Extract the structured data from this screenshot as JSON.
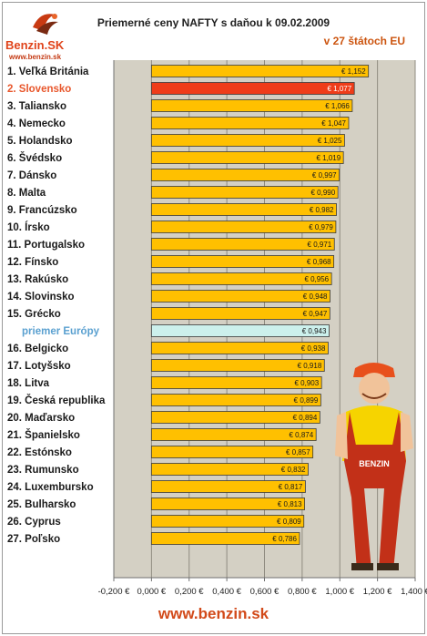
{
  "logo": {
    "brand_a": "Benzin",
    "brand_b": ".SK",
    "url": "www.benzin.sk"
  },
  "footer": {
    "url": "www.benzin.sk"
  },
  "colors": {
    "bar": "#ffc000",
    "highlight": "#ef3c19",
    "average": "#ccf0ec",
    "plot_bg": "#d4d0c4",
    "label_highlight": "#e8572c",
    "label_average": "#5aa0d0"
  },
  "chart_data": {
    "type": "bar",
    "orientation": "horizontal",
    "title": "Priemerné ceny NAFTY s daňou k 09.02.2009",
    "subtitle": "v 27 štátoch EU",
    "categories": [
      "1. Veľká Británia",
      "2. Slovensko",
      "3. Taliansko",
      "4. Nemecko",
      "5. Holandsko",
      "6. Švédsko",
      "7. Dánsko",
      "8. Malta",
      "9. Francúzsko",
      "10. Írsko",
      "11. Portugalsko",
      "12. Fínsko",
      "13. Rakúsko",
      "14. Slovinsko",
      "15. Grécko",
      "priemer Európy",
      "16. Belgicko",
      "17. Lotyšsko",
      "18. Litva",
      "19. Česká republika",
      "20. Maďarsko",
      "21. Španielsko",
      "22. Estónsko",
      "23. Rumunsko",
      "24. Luxembursko",
      "25. Bulharsko",
      "26. Cyprus",
      "27. Poľsko"
    ],
    "values": [
      1.152,
      1.077,
      1.066,
      1.047,
      1.025,
      1.019,
      0.997,
      0.99,
      0.982,
      0.979,
      0.971,
      0.968,
      0.956,
      0.948,
      0.947,
      0.943,
      0.938,
      0.918,
      0.903,
      0.899,
      0.894,
      0.874,
      0.857,
      0.832,
      0.817,
      0.813,
      0.809,
      0.786
    ],
    "value_labels": [
      "€ 1,152",
      "€ 1,077",
      "€ 1,066",
      "€ 1,047",
      "€ 1,025",
      "€ 1,019",
      "€ 0,997",
      "€ 0,990",
      "€ 0,982",
      "€ 0,979",
      "€ 0,971",
      "€ 0,968",
      "€ 0,956",
      "€ 0,948",
      "€ 0,947",
      "€ 0,943",
      "€ 0,938",
      "€ 0,918",
      "€ 0,903",
      "€ 0,899",
      "€ 0,894",
      "€ 0,874",
      "€ 0,857",
      "€ 0,832",
      "€ 0,817",
      "€ 0,813",
      "€ 0,809",
      "€ 0,786"
    ],
    "highlight_index": 1,
    "average_index": 15,
    "xlim": [
      -0.2,
      1.4
    ],
    "x_ticks": [
      -0.2,
      0.0,
      0.2,
      0.4,
      0.6,
      0.8,
      1.0,
      1.2,
      1.4
    ],
    "x_tick_labels": [
      "-0,200 €",
      "0,000 €",
      "0,200 €",
      "0,400 €",
      "0,600 €",
      "0,800 €",
      "1,000 €",
      "1,200 €",
      "1,400 €"
    ],
    "grid": true
  }
}
